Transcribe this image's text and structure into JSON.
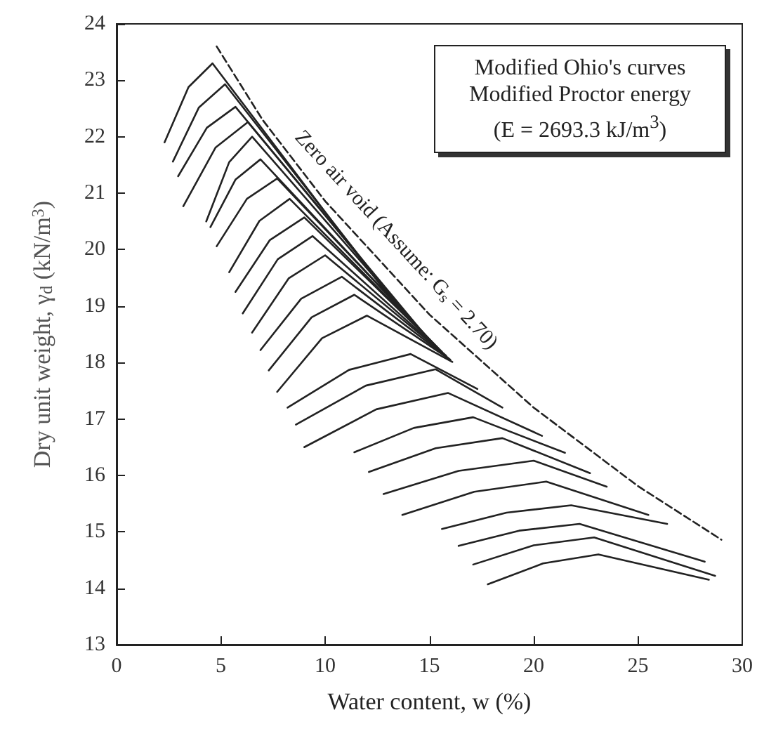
{
  "chart_data": {
    "type": "line",
    "xlabel": "Water content, w (%)",
    "ylabel": "Dry unit weight, γ$_{d}$ (kN/m$^{3}$)",
    "xlim": [
      0,
      30
    ],
    "xticks": [
      0,
      5,
      10,
      15,
      20,
      25,
      30
    ],
    "ylim": [
      13,
      24
    ],
    "yticks": [
      13,
      14,
      15,
      16,
      17,
      18,
      19,
      20,
      21,
      22,
      23,
      24
    ],
    "grid": false,
    "marker": "none",
    "annotations": [
      "Zero air void (Assume: G$_{s}$ = 2.70)",
      "Modified Ohio's curves",
      "Modified Proctor energy",
      "(E = 2693.3 kJ/m$^{3}$)"
    ],
    "series": [
      {
        "color": "#222222",
        "x": [
          2.3,
          3.45,
          4.6,
          13.5
        ],
        "values": [
          21.9,
          22.88,
          23.3,
          18.96
        ]
      },
      {
        "color": "#222222",
        "x": [
          2.7,
          3.95,
          5.2,
          14
        ],
        "values": [
          21.56,
          22.52,
          22.93,
          18.77
        ]
      },
      {
        "color": "#222222",
        "x": [
          2.95,
          4.33,
          5.7,
          14.5
        ],
        "values": [
          21.3,
          22.16,
          22.53,
          18.59
        ]
      },
      {
        "color": "#222222",
        "x": [
          3.2,
          4.75,
          6.3,
          14.8
        ],
        "values": [
          20.77,
          21.81,
          22.26,
          18.48
        ]
      },
      {
        "color": "#222222",
        "x": [
          4.3,
          5.4,
          6.5,
          15
        ],
        "values": [
          20.5,
          21.55,
          22.0,
          18.4
        ]
      },
      {
        "color": "#222222",
        "x": [
          4.5,
          5.7,
          6.9,
          15.2
        ],
        "values": [
          20.4,
          21.24,
          21.6,
          18.33
        ]
      },
      {
        "color": "#222222",
        "x": [
          4.8,
          6.25,
          7.7,
          15.4
        ],
        "values": [
          20.06,
          20.9,
          21.26,
          18.26
        ]
      },
      {
        "color": "#222222",
        "x": [
          5.4,
          6.85,
          8.3,
          15.5
        ],
        "values": [
          19.6,
          20.51,
          20.9,
          18.22
        ]
      },
      {
        "color": "#222222",
        "x": [
          5.7,
          7.35,
          9.0,
          15.6
        ],
        "values": [
          19.25,
          20.17,
          20.57,
          18.19
        ]
      },
      {
        "color": "#222222",
        "x": [
          6.05,
          7.73,
          9.4,
          15.7
        ],
        "values": [
          18.87,
          19.83,
          20.24,
          18.15
        ]
      },
      {
        "color": "#222222",
        "x": [
          6.5,
          8.25,
          10.0,
          15.8
        ],
        "values": [
          18.53,
          19.49,
          19.9,
          18.12
        ]
      },
      {
        "color": "#222222",
        "x": [
          6.9,
          8.85,
          10.8,
          15.9
        ],
        "values": [
          18.22,
          19.13,
          19.52,
          18.08
        ]
      },
      {
        "color": "#222222",
        "x": [
          7.3,
          9.35,
          11.4,
          16.0
        ],
        "values": [
          17.86,
          18.8,
          19.2,
          18.05
        ]
      },
      {
        "color": "#222222",
        "x": [
          7.7,
          9.85,
          12.0,
          16.1
        ],
        "values": [
          17.48,
          18.43,
          18.83,
          18.01
        ]
      },
      {
        "color": "#222222",
        "x": [
          8.2,
          11.15,
          14.1,
          17.3
        ],
        "values": [
          17.2,
          17.87,
          18.15,
          17.53
        ]
      },
      {
        "color": "#222222",
        "x": [
          8.6,
          11.95,
          15.3,
          18.5
        ],
        "values": [
          16.9,
          17.59,
          17.88,
          17.2
        ]
      },
      {
        "color": "#222222",
        "x": [
          9.0,
          12.45,
          15.9,
          20.4
        ],
        "values": [
          16.5,
          17.17,
          17.46,
          16.7
        ]
      },
      {
        "color": "#222222",
        "x": [
          11.4,
          14.25,
          17.1,
          21.5
        ],
        "values": [
          16.41,
          16.84,
          17.03,
          16.4
        ]
      },
      {
        "color": "#222222",
        "x": [
          12.1,
          15.3,
          18.5,
          22.7
        ],
        "values": [
          16.06,
          16.48,
          16.66,
          16.04
        ]
      },
      {
        "color": "#222222",
        "x": [
          12.8,
          16.4,
          20.0,
          23.5
        ],
        "values": [
          15.67,
          16.08,
          16.26,
          15.8
        ]
      },
      {
        "color": "#222222",
        "x": [
          13.7,
          17.15,
          20.6,
          25.5
        ],
        "values": [
          15.3,
          15.71,
          15.89,
          15.3
        ]
      },
      {
        "color": "#222222",
        "x": [
          15.6,
          18.7,
          21.8,
          26.4
        ],
        "values": [
          15.05,
          15.34,
          15.47,
          15.14
        ]
      },
      {
        "color": "#222222",
        "x": [
          16.4,
          19.3,
          22.2,
          28.2
        ],
        "values": [
          14.75,
          15.02,
          15.14,
          14.47
        ]
      },
      {
        "color": "#222222",
        "x": [
          17.1,
          20.0,
          22.9,
          28.7
        ],
        "values": [
          14.42,
          14.76,
          14.9,
          14.22
        ]
      },
      {
        "color": "#222222",
        "x": [
          17.8,
          20.45,
          23.1,
          28.4
        ],
        "values": [
          14.07,
          14.44,
          14.6,
          14.15
        ]
      },
      {
        "color": "#222222",
        "line_style": "dashed",
        "x": [
          4.8,
          7,
          10,
          15,
          20,
          25,
          29
        ],
        "values": [
          23.6,
          22.3,
          20.86,
          18.85,
          17.2,
          15.81,
          14.86
        ]
      }
    ]
  }
}
